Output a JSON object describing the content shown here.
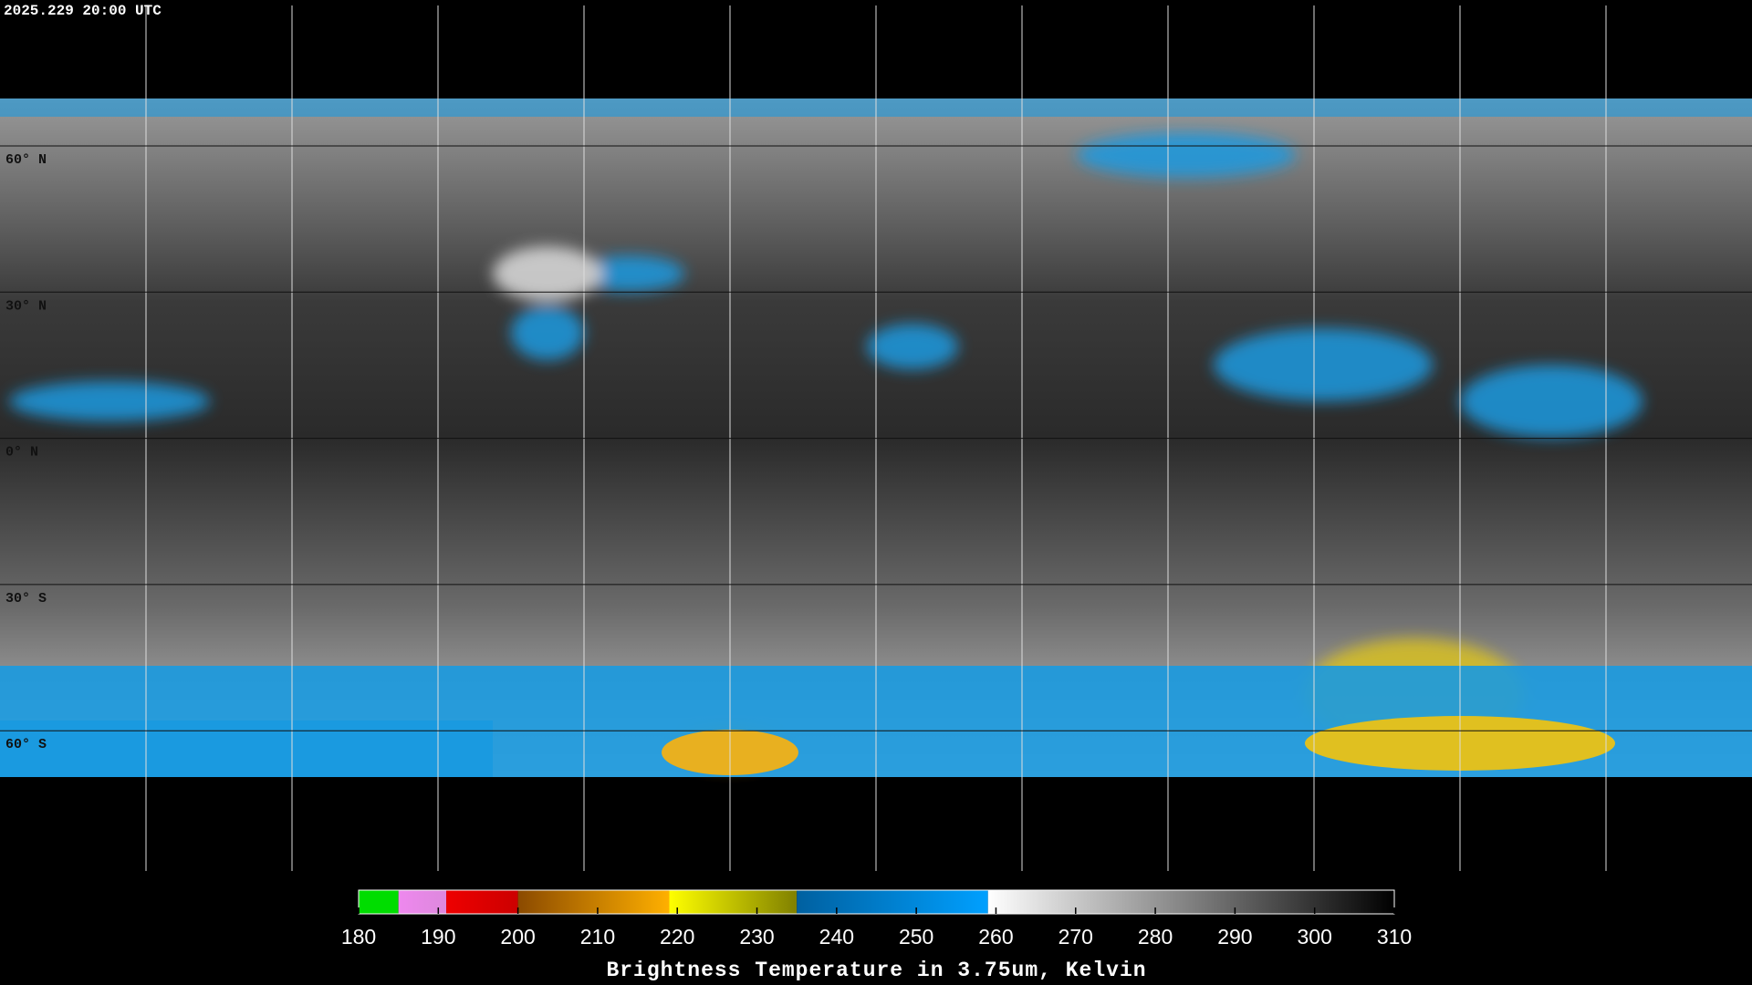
{
  "timestamp": "2025.229 20:00 UTC",
  "latitude_labels": [
    "60° N",
    "30° N",
    "0° N",
    "30° S",
    "60° S"
  ],
  "colorbar": {
    "title": "Brightness Temperature in 3.75um, Kelvin",
    "range": [
      180,
      310
    ],
    "ticks": [
      180,
      190,
      200,
      210,
      220,
      230,
      240,
      250,
      260,
      270,
      280,
      290,
      300,
      310
    ],
    "segments": [
      {
        "from": 180,
        "to": 185,
        "colors": [
          "#00dd00",
          "#00dd00"
        ]
      },
      {
        "from": 185,
        "to": 191,
        "colors": [
          "#ee88ee",
          "#dd88dd"
        ]
      },
      {
        "from": 191,
        "to": 200,
        "colors": [
          "#ee0000",
          "#cc0000"
        ]
      },
      {
        "from": 200,
        "to": 219,
        "colors": [
          "#8b4a00",
          "#ffb000"
        ]
      },
      {
        "from": 219,
        "to": 235,
        "colors": [
          "#ffff00",
          "#808000"
        ]
      },
      {
        "from": 235,
        "to": 259,
        "colors": [
          "#0060a0",
          "#00a0ff"
        ]
      },
      {
        "from": 259,
        "to": 310,
        "colors": [
          "#ffffff",
          "#000000"
        ]
      }
    ]
  }
}
